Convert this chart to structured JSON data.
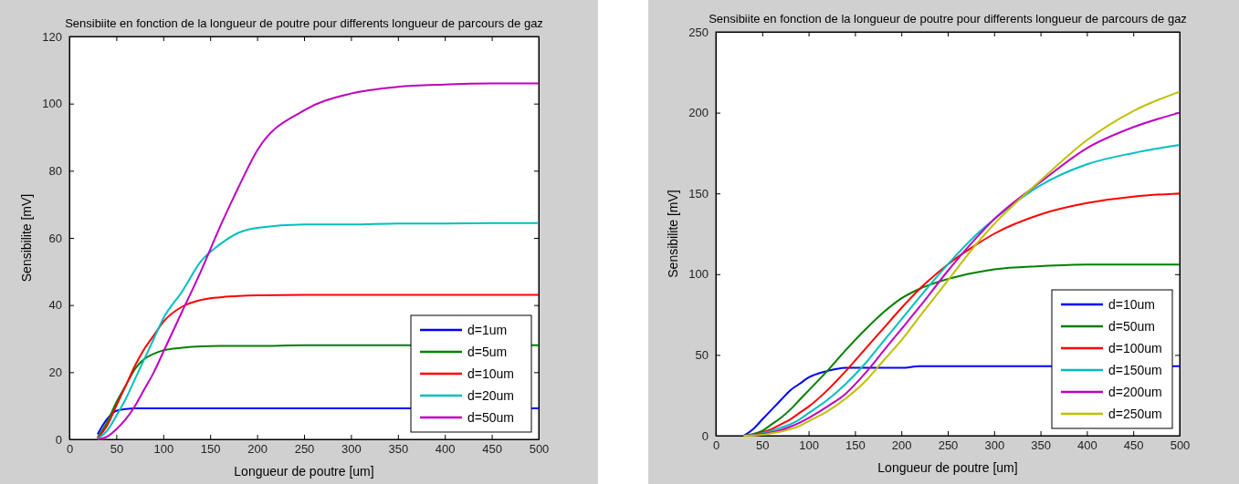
{
  "chart_data": [
    {
      "type": "line",
      "title": "Sensibiite en fonction de la longueur de poutre pour differents longueur de parcours de gaz",
      "xlabel": "Longueur de poutre [um]",
      "ylabel": "Sensibilite [mV]",
      "xlim": [
        0,
        500
      ],
      "ylim": [
        0,
        120
      ],
      "xticks": [
        0,
        50,
        100,
        150,
        200,
        250,
        300,
        350,
        400,
        450,
        500
      ],
      "yticks": [
        0,
        20,
        40,
        60,
        80,
        100,
        120
      ],
      "legend": "bottom right",
      "x": [
        30,
        40,
        50,
        60,
        70,
        80,
        90,
        100,
        120,
        140,
        160,
        180,
        200,
        250,
        300,
        350,
        400,
        450,
        500
      ],
      "series": [
        {
          "name": "d=1um",
          "color": "#0000ff",
          "x": [
            30,
            40,
            50,
            60,
            70,
            80,
            90,
            100,
            120,
            140,
            160,
            180,
            200,
            250,
            300,
            350,
            495,
            500
          ],
          "values": [
            1.5,
            6,
            8.5,
            9,
            9.2,
            9.2,
            9.2,
            9.2,
            9.2,
            9.2,
            9.2,
            9.2,
            9.2,
            9.2,
            9.2,
            9.2,
            9.2,
            9.2
          ]
        },
        {
          "name": "d=5um",
          "color": "#008000",
          "x": [
            30,
            40,
            50,
            60,
            70,
            80,
            90,
            100,
            120,
            140,
            160,
            180,
            200,
            250,
            300,
            350,
            495,
            500
          ],
          "values": [
            0.5,
            5,
            11,
            16,
            21,
            24,
            25.5,
            26.5,
            27.3,
            27.7,
            27.8,
            27.8,
            27.8,
            28,
            28,
            28,
            28,
            28
          ]
        },
        {
          "name": "d=10um",
          "color": "#ff0000",
          "values": [
            0.3,
            4,
            10,
            16,
            22,
            27,
            31,
            35,
            39.5,
            41.5,
            42.3,
            42.7,
            42.9,
            43,
            43,
            43,
            43,
            43,
            43
          ]
        },
        {
          "name": "d=20um",
          "color": "#00bfbf",
          "values": [
            0.2,
            2.5,
            7,
            12,
            18,
            24,
            30,
            36,
            44,
            53,
            58,
            61.5,
            63,
            64,
            64,
            64.3,
            64.3,
            64.4,
            64.4
          ]
        },
        {
          "name": "d=50um",
          "color": "#bf00bf",
          "values": [
            0,
            0.8,
            3,
            6,
            10,
            15,
            20,
            26,
            38,
            50,
            63,
            75,
            86,
            98,
            103,
            105,
            105.7,
            106,
            106
          ]
        }
      ]
    },
    {
      "type": "line",
      "title": "Sensibiite en fonction de la longueur de poutre pour differents longueur de parcours de gaz",
      "xlabel": "Longueur de poutre [um]",
      "ylabel": "Sensibilite [mV]",
      "xlim": [
        0,
        500
      ],
      "ylim": [
        0,
        250
      ],
      "xticks": [
        0,
        50,
        100,
        150,
        200,
        250,
        300,
        350,
        400,
        450,
        500
      ],
      "yticks": [
        0,
        50,
        100,
        150,
        200,
        250
      ],
      "legend": "bottom right",
      "x": [
        30,
        40,
        50,
        60,
        70,
        80,
        90,
        100,
        120,
        140,
        160,
        180,
        200,
        220,
        250,
        280,
        300,
        350,
        400,
        450,
        500
      ],
      "series": [
        {
          "name": "d=10um",
          "color": "#0000ff",
          "x": [
            30,
            40,
            50,
            60,
            70,
            80,
            90,
            100,
            120,
            140,
            160,
            180,
            200,
            220,
            250,
            280,
            300,
            350,
            495,
            500
          ],
          "values": [
            0,
            4,
            10,
            16,
            22,
            28,
            32,
            36,
            40,
            42,
            42,
            42,
            42,
            43,
            43,
            43,
            43,
            43,
            43,
            43
          ]
        },
        {
          "name": "d=50um",
          "color": "#008000",
          "values": [
            0,
            1,
            3,
            7,
            11,
            16,
            22,
            28,
            40,
            53,
            65,
            76,
            85,
            91,
            97,
            101,
            103,
            105,
            106,
            106,
            106
          ]
        },
        {
          "name": "d=100um",
          "color": "#ff0000",
          "values": [
            0,
            0.5,
            2,
            4,
            7,
            10,
            14,
            18,
            28,
            40,
            53,
            66,
            79,
            91,
            106,
            118,
            125,
            137,
            144,
            148,
            150
          ]
        },
        {
          "name": "d=150um",
          "color": "#00bfbf",
          "values": [
            0,
            0.3,
            1.5,
            3,
            5,
            7,
            10,
            14,
            22,
            32,
            44,
            58,
            72,
            86,
            106,
            124,
            134,
            155,
            168,
            175,
            180
          ]
        },
        {
          "name": "d=200um",
          "color": "#bf00bf",
          "values": [
            0,
            0.2,
            1,
            2,
            3.5,
            5.5,
            8,
            11,
            18,
            26,
            38,
            52,
            66,
            80,
            102,
            122,
            134,
            157,
            178,
            191,
            200
          ]
        },
        {
          "name": "d=250um",
          "color": "#bfbf00",
          "values": [
            0,
            0.1,
            0.5,
            1.5,
            2.5,
            4,
            6,
            9,
            15,
            23,
            33,
            46,
            59,
            74,
            96,
            118,
            131,
            158,
            183,
            201,
            213
          ]
        }
      ]
    }
  ]
}
